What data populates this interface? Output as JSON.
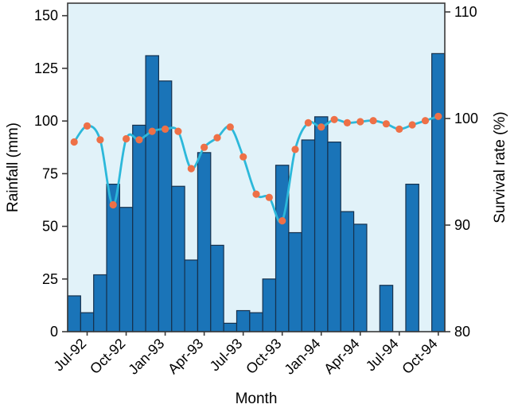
{
  "chart_data": {
    "type": "combo_bar_line",
    "xlabel": "Month",
    "ylabel_left": "Rainfall (mm)",
    "ylabel_right": "Survival rate (%)",
    "categories": [
      "Jun-92",
      "Jul-92",
      "Aug-92",
      "Sep-92",
      "Oct-92",
      "Nov-92",
      "Dec-92",
      "Jan-93",
      "Feb-93",
      "Mar-93",
      "Apr-93",
      "May-93",
      "Jun-93",
      "Jul-93",
      "Aug-93",
      "Sep-93",
      "Oct-93",
      "Nov-93",
      "Dec-93",
      "Jan-94",
      "Feb-94",
      "Mar-94",
      "Apr-94",
      "May-94",
      "Jun-94",
      "Jul-94",
      "Aug-94",
      "Sep-94",
      "Oct-94"
    ],
    "x_tick_labels": [
      "Jul-92",
      "Oct-92",
      "Jan-93",
      "Apr-93",
      "Jul-93",
      "Oct-93",
      "Jan-94",
      "Apr-94",
      "Jul-94",
      "Oct-94"
    ],
    "series": [
      {
        "name": "Rainfall (mm)",
        "type": "bar",
        "axis": "left",
        "color": "#1a74b8",
        "edge_color": "#16314d",
        "values": [
          17,
          9,
          27,
          70,
          59,
          98,
          131,
          119,
          69,
          34,
          85,
          41,
          4,
          10,
          9,
          25,
          79,
          47,
          91,
          102,
          90,
          57,
          51,
          0,
          22,
          0,
          70,
          0,
          132
        ]
      },
      {
        "name": "Survival rate (%)",
        "type": "line",
        "axis": "right",
        "color": "#2cb8da",
        "marker_color": "#ee7047",
        "values": [
          97.8,
          99.3,
          98.0,
          91.9,
          98.1,
          98.0,
          98.8,
          99.0,
          98.8,
          95.3,
          97.3,
          98.2,
          99.2,
          96.4,
          92.9,
          92.6,
          90.4,
          97.1,
          99.6,
          99.2,
          99.9,
          99.6,
          99.7,
          99.8,
          99.5,
          99.0,
          99.4,
          99.8,
          100.2
        ]
      }
    ],
    "ylim_left": [
      0,
      150
    ],
    "yticks_left": [
      "0",
      "25",
      "50",
      "75",
      "100",
      "125",
      "150"
    ],
    "ylim_right": [
      80,
      110
    ],
    "yticks_right": [
      "80",
      "90",
      "100",
      "110"
    ],
    "grid": false,
    "legend": "none",
    "plot_bg": "#e1f2f9",
    "spine_color": "#3a3a3a"
  }
}
